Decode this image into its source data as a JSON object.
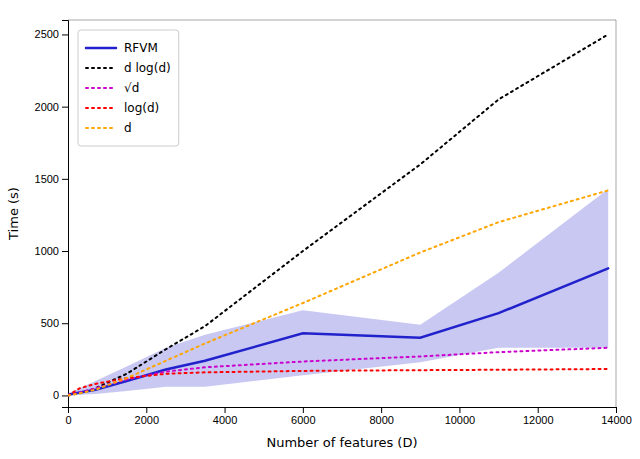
{
  "chart_data": {
    "type": "line",
    "xlabel": "Number of features (D)",
    "ylabel": "Time (s)",
    "xlim": [
      0,
      14000
    ],
    "ylim": [
      -80,
      2600
    ],
    "xticks": [
      0,
      2000,
      4000,
      6000,
      8000,
      10000,
      12000,
      14000
    ],
    "yticks": [
      0,
      500,
      1000,
      1500,
      2000,
      2500
    ],
    "grid": false,
    "legend": "upper left",
    "x": [
      0,
      300,
      700,
      1500,
      2500,
      3500,
      6000,
      9000,
      11000,
      13800
    ],
    "series": [
      {
        "name": "RFVM",
        "color": "#2222cc",
        "line_style": "solid",
        "values": [
          5,
          20,
          40,
          100,
          180,
          240,
          430,
          400,
          570,
          880
        ],
        "lower": [
          0,
          5,
          10,
          30,
          60,
          60,
          140,
          230,
          330,
          330
        ],
        "upper": [
          15,
          50,
          100,
          200,
          330,
          420,
          590,
          490,
          850,
          1430
        ]
      },
      {
        "name": "d log(d)",
        "color": "black",
        "line_style": "dotted",
        "values": [
          0,
          15,
          50,
          150,
          320,
          480,
          1000,
          1600,
          2050,
          2500
        ]
      },
      {
        "name": "√d",
        "color": "#cc00cc",
        "line_style": "dotted",
        "values": [
          0,
          20,
          50,
          110,
          165,
          195,
          235,
          270,
          300,
          330
        ]
      },
      {
        "name": "log(d)",
        "color": "red",
        "line_style": "dotted",
        "values": [
          0,
          50,
          80,
          120,
          150,
          160,
          170,
          175,
          178,
          183
        ]
      },
      {
        "name": "d",
        "color": "orange",
        "line_style": "dotted",
        "values": [
          0,
          15,
          40,
          120,
          240,
          360,
          640,
          990,
          1200,
          1420
        ]
      }
    ]
  }
}
